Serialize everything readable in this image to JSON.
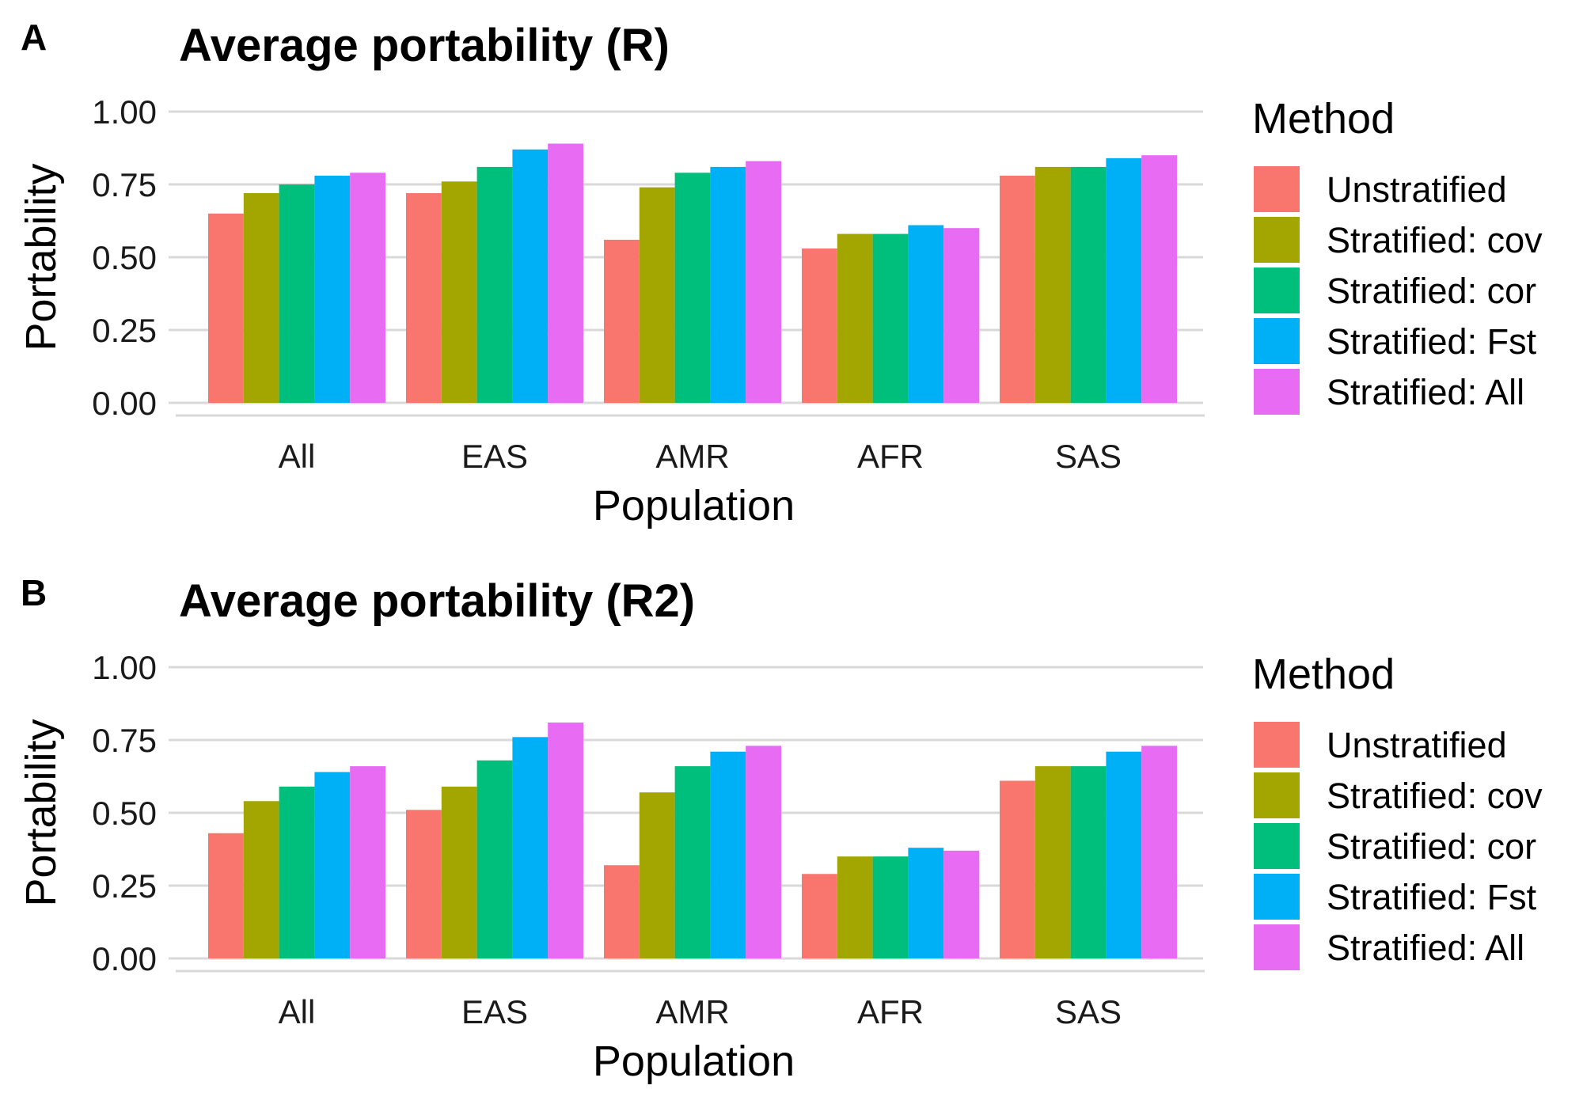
{
  "chart_data": [
    {
      "type": "bar",
      "panel_label": "A",
      "title": "Average portability (R)",
      "xlabel": "Population",
      "ylabel": "Portability",
      "ylim": [
        0,
        1
      ],
      "yticks": [
        "0.00",
        "0.25",
        "0.50",
        "0.75",
        "1.00"
      ],
      "categories": [
        "All",
        "EAS",
        "AMR",
        "AFR",
        "SAS"
      ],
      "legend_title": "Method",
      "legend_position": "right",
      "grid": true,
      "series": [
        {
          "name": "Unstratified",
          "color": "#F8766D",
          "values": [
            0.65,
            0.72,
            0.56,
            0.53,
            0.78
          ]
        },
        {
          "name": "Stratified: cov",
          "color": "#A3A500",
          "values": [
            0.72,
            0.76,
            0.74,
            0.58,
            0.81
          ]
        },
        {
          "name": "Stratified: cor",
          "color": "#00BF7D",
          "values": [
            0.75,
            0.81,
            0.79,
            0.58,
            0.81
          ]
        },
        {
          "name": "Stratified: Fst",
          "color": "#00B0F6",
          "values": [
            0.78,
            0.87,
            0.81,
            0.61,
            0.84
          ]
        },
        {
          "name": "Stratified: All",
          "color": "#E76BF3",
          "values": [
            0.79,
            0.89,
            0.83,
            0.6,
            0.85
          ]
        }
      ]
    },
    {
      "type": "bar",
      "panel_label": "B",
      "title": "Average portability (R2)",
      "xlabel": "Population",
      "ylabel": "Portability",
      "ylim": [
        0,
        1
      ],
      "yticks": [
        "0.00",
        "0.25",
        "0.50",
        "0.75",
        "1.00"
      ],
      "categories": [
        "All",
        "EAS",
        "AMR",
        "AFR",
        "SAS"
      ],
      "legend_title": "Method",
      "legend_position": "right",
      "grid": true,
      "series": [
        {
          "name": "Unstratified",
          "color": "#F8766D",
          "values": [
            0.43,
            0.51,
            0.32,
            0.29,
            0.61
          ]
        },
        {
          "name": "Stratified: cov",
          "color": "#A3A500",
          "values": [
            0.54,
            0.59,
            0.57,
            0.35,
            0.66
          ]
        },
        {
          "name": "Stratified: cor",
          "color": "#00BF7D",
          "values": [
            0.59,
            0.68,
            0.66,
            0.35,
            0.66
          ]
        },
        {
          "name": "Stratified: Fst",
          "color": "#00B0F6",
          "values": [
            0.64,
            0.76,
            0.71,
            0.38,
            0.71
          ]
        },
        {
          "name": "Stratified: All",
          "color": "#E76BF3",
          "values": [
            0.66,
            0.81,
            0.73,
            0.37,
            0.73
          ]
        }
      ]
    }
  ]
}
